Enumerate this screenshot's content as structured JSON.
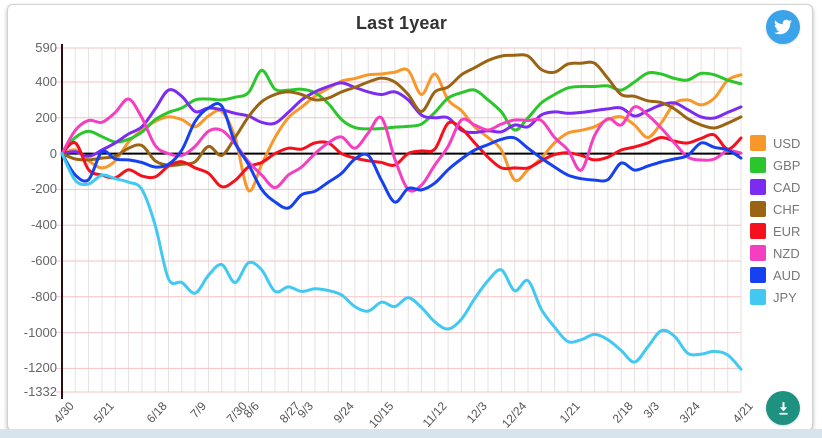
{
  "header": {
    "title": "Last 1year"
  },
  "buttons": {
    "twitter_share": {
      "label": "Share on Twitter",
      "color": "#3BA3EA"
    },
    "download": {
      "label": "Download chart",
      "color": "#1E9181"
    }
  },
  "page": {
    "card_background": "#FFFFFF",
    "footer_strip_color": "#D7E4EE"
  },
  "chart_data": {
    "type": "line",
    "title": "Last 1year",
    "legend_position": "right",
    "x_axis": {
      "unit": "weeks",
      "weeks_total": 51,
      "tick_labels": [
        {
          "text": "4/30",
          "week": 0
        },
        {
          "text": "5/21",
          "week": 3
        },
        {
          "text": "6/18",
          "week": 7
        },
        {
          "text": "7/9",
          "week": 10
        },
        {
          "text": "7/30",
          "week": 13
        },
        {
          "text": "8/6",
          "week": 14
        },
        {
          "text": "8/27",
          "week": 17
        },
        {
          "text": "9/3",
          "week": 18
        },
        {
          "text": "9/24",
          "week": 21
        },
        {
          "text": "10/15",
          "week": 24
        },
        {
          "text": "11/12",
          "week": 28
        },
        {
          "text": "12/3",
          "week": 31
        },
        {
          "text": "12/24",
          "week": 34
        },
        {
          "text": "1/21",
          "week": 38
        },
        {
          "text": "2/18",
          "week": 42
        },
        {
          "text": "3/3",
          "week": 44
        },
        {
          "text": "3/24",
          "week": 47
        },
        {
          "text": "4/21",
          "week": 51
        }
      ]
    },
    "y_axis": {
      "min": -1332,
      "max": 590,
      "tick_values": [
        590,
        400,
        200,
        0,
        -200,
        -400,
        -600,
        -800,
        -1000,
        -1200,
        -1332
      ]
    },
    "grid": {
      "h_line_color": "#F5C3C3",
      "v_line_color": "#E7E2E2",
      "zero_line_color": "#000000",
      "y_axis_line_color": "#2B0E0E",
      "vertical_every_week": 1
    },
    "series": [
      {
        "name": "USD",
        "color": "#F8982B",
        "values": [
          0,
          20,
          -40,
          -80,
          -40,
          65,
          130,
          180,
          205,
          190,
          150,
          210,
          235,
          90,
          -205,
          -60,
          90,
          200,
          260,
          320,
          365,
          405,
          420,
          440,
          445,
          455,
          465,
          330,
          445,
          300,
          240,
          150,
          90,
          20,
          -148,
          -90,
          -25,
          60,
          115,
          130,
          150,
          190,
          205,
          160,
          90,
          170,
          280,
          300,
          272,
          310,
          410,
          440
        ]
      },
      {
        "name": "GBP",
        "color": "#2BC62B",
        "values": [
          0,
          90,
          125,
          95,
          65,
          80,
          120,
          190,
          230,
          255,
          300,
          305,
          300,
          315,
          340,
          465,
          360,
          355,
          360,
          340,
          280,
          190,
          145,
          138,
          140,
          148,
          152,
          165,
          230,
          310,
          340,
          355,
          300,
          233,
          132,
          200,
          283,
          330,
          367,
          375,
          375,
          378,
          355,
          400,
          450,
          445,
          420,
          411,
          448,
          440,
          410,
          390
        ]
      },
      {
        "name": "CAD",
        "color": "#7B2BF2",
        "values": [
          0,
          10,
          -15,
          20,
          60,
          110,
          150,
          250,
          355,
          320,
          235,
          255,
          245,
          225,
          210,
          175,
          170,
          230,
          300,
          345,
          375,
          395,
          370,
          345,
          330,
          345,
          300,
          215,
          200,
          200,
          130,
          118,
          128,
          122,
          160,
          150,
          216,
          233,
          225,
          230,
          240,
          250,
          255,
          210,
          240,
          272,
          283,
          245,
          205,
          199,
          230,
          261
        ]
      },
      {
        "name": "CHF",
        "color": "#9A6414",
        "values": [
          0,
          -30,
          -35,
          -25,
          -15,
          30,
          45,
          -40,
          -65,
          -60,
          -45,
          40,
          -10,
          90,
          205,
          290,
          330,
          345,
          330,
          300,
          310,
          345,
          370,
          400,
          422,
          400,
          330,
          235,
          344,
          372,
          440,
          480,
          520,
          545,
          550,
          545,
          470,
          455,
          500,
          505,
          505,
          420,
          330,
          320,
          295,
          285,
          250,
          195,
          160,
          143,
          170,
          205
        ]
      },
      {
        "name": "EUR",
        "color": "#F5101D",
        "values": [
          0,
          60,
          -90,
          -120,
          -135,
          -90,
          -125,
          -130,
          -70,
          -45,
          -80,
          -110,
          -185,
          -150,
          -75,
          -50,
          0,
          30,
          25,
          60,
          60,
          0,
          -25,
          -40,
          -50,
          -64,
          0,
          15,
          25,
          170,
          140,
          60,
          -20,
          -80,
          -80,
          -80,
          -40,
          -5,
          5,
          -10,
          -35,
          -20,
          20,
          37,
          60,
          90,
          70,
          59,
          85,
          104,
          25,
          87
        ]
      },
      {
        "name": "NZD",
        "color": "#F43FC0",
        "values": [
          0,
          130,
          185,
          175,
          230,
          305,
          200,
          45,
          0,
          -10,
          40,
          125,
          130,
          55,
          -45,
          -120,
          -190,
          -120,
          -75,
          0,
          60,
          93,
          30,
          115,
          200,
          -30,
          -200,
          -176,
          -64,
          40,
          188,
          160,
          132,
          165,
          188,
          185,
          185,
          90,
          20,
          -92,
          100,
          195,
          160,
          261,
          215,
          143,
          59,
          -19,
          -36,
          -30,
          15,
          3
        ]
      },
      {
        "name": "AUD",
        "color": "#1641F0",
        "values": [
          0,
          -120,
          -145,
          10,
          -30,
          -35,
          -50,
          -75,
          -60,
          20,
          180,
          255,
          265,
          60,
          -60,
          -200,
          -270,
          -304,
          -230,
          -210,
          -160,
          -110,
          -30,
          -10,
          -150,
          -271,
          -195,
          -203,
          -165,
          -90,
          -30,
          20,
          50,
          80,
          87,
          30,
          -25,
          -75,
          -120,
          -140,
          -148,
          -145,
          -53,
          -92,
          -70,
          -47,
          -30,
          -10,
          59,
          35,
          20,
          -25
        ]
      },
      {
        "name": "JPY",
        "color": "#41C9F1",
        "values": [
          0,
          -150,
          -170,
          -120,
          -140,
          -160,
          -200,
          -400,
          -700,
          -720,
          -780,
          -680,
          -620,
          -720,
          -610,
          -650,
          -770,
          -745,
          -770,
          -755,
          -765,
          -790,
          -855,
          -880,
          -830,
          -855,
          -805,
          -860,
          -940,
          -980,
          -925,
          -810,
          -710,
          -650,
          -766,
          -710,
          -870,
          -970,
          -1050,
          -1040,
          -1010,
          -1040,
          -1100,
          -1165,
          -1080,
          -990,
          -1020,
          -1115,
          -1120,
          -1105,
          -1125,
          -1205
        ]
      }
    ]
  }
}
